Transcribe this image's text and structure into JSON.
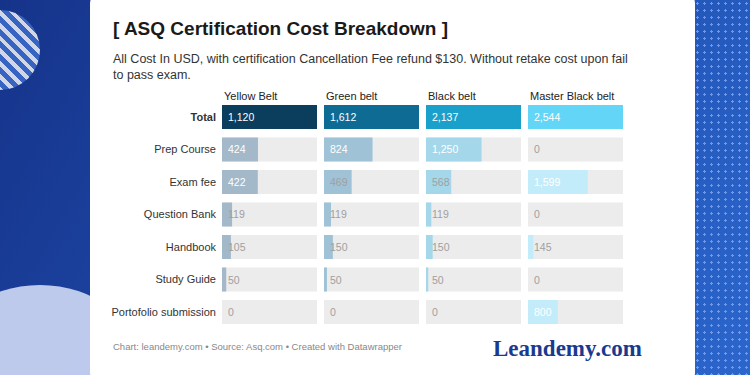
{
  "title": "[ ASQ Certification Cost Breakdown ]",
  "subtitle": "All Cost In USD, with certification Cancellation Fee refund $130. Without retake cost upon fail to pass exam.",
  "footer": "Chart: leandemy.com • Source: Asq.com • Created with Datawrapper",
  "logo": "Leandemy.com",
  "chart_data": [
    {
      "type": "bar",
      "orientation": "horizontal",
      "title": "Yellow Belt",
      "categories": [
        "Total",
        "Prep Course",
        "Exam fee",
        "Question Bank",
        "Handbook",
        "Study Guide",
        "Portofolio submission"
      ],
      "values": [
        1120,
        424,
        422,
        119,
        105,
        50,
        0
      ],
      "value_labels": [
        "1,120",
        "424",
        "422",
        "119",
        "105",
        "50",
        "0"
      ],
      "colors": [
        "#0b3d5c",
        "#a3b8c8",
        "#a3b8c8",
        "#a3b8c8",
        "#a3b8c8",
        "#a3b8c8",
        "#a3b8c8"
      ],
      "xlim": [
        0,
        1120
      ],
      "data_labels": true,
      "tick_labels": "y"
    },
    {
      "type": "bar",
      "orientation": "horizontal",
      "title": "Green belt",
      "categories": [
        "Total",
        "Prep Course",
        "Exam fee",
        "Question Bank",
        "Handbook",
        "Study Guide",
        "Portofolio submission"
      ],
      "values": [
        1612,
        824,
        469,
        119,
        150,
        50,
        0
      ],
      "value_labels": [
        "1,612",
        "824",
        "469",
        "119",
        "150",
        "50",
        "0"
      ],
      "colors": [
        "#0e6b93",
        "#9fc2d6",
        "#9fc2d6",
        "#9fc2d6",
        "#9fc2d6",
        "#9fc2d6",
        "#9fc2d6"
      ],
      "xlim": [
        0,
        1612
      ],
      "data_labels": true,
      "tick_labels": false
    },
    {
      "type": "bar",
      "orientation": "horizontal",
      "title": "Black belt",
      "categories": [
        "Total",
        "Prep Course",
        "Exam fee",
        "Question Bank",
        "Handbook",
        "Study Guide",
        "Portofolio submission"
      ],
      "values": [
        2137,
        1250,
        568,
        119,
        150,
        50,
        0
      ],
      "value_labels": [
        "2,137",
        "1,250",
        "568",
        "119",
        "150",
        "50",
        "0"
      ],
      "colors": [
        "#1ba0cc",
        "#a4d7ea",
        "#a4d7ea",
        "#a4d7ea",
        "#a4d7ea",
        "#a4d7ea",
        "#a4d7ea"
      ],
      "xlim": [
        0,
        2137
      ],
      "data_labels": true,
      "tick_labels": false
    },
    {
      "type": "bar",
      "orientation": "horizontal",
      "title": "Master Black belt",
      "categories": [
        "Total",
        "Prep Course",
        "Exam fee",
        "Question Bank",
        "Handbook",
        "Study Guide",
        "Portofolio submission"
      ],
      "values": [
        2544,
        0,
        1599,
        0,
        145,
        0,
        800
      ],
      "value_labels": [
        "2,544",
        "0",
        "1,599",
        "0",
        "145",
        "0",
        "800"
      ],
      "colors": [
        "#63d5f7",
        "#c3ecfa",
        "#c3ecfa",
        "#c3ecfa",
        "#c3ecfa",
        "#c3ecfa",
        "#c3ecfa"
      ],
      "xlim": [
        0,
        2544
      ],
      "data_labels": true,
      "tick_labels": false
    }
  ]
}
